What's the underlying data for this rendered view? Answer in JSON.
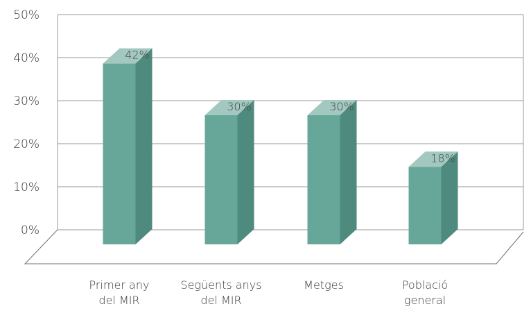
{
  "chart_data": {
    "type": "bar",
    "categories": [
      [
        "Primer any",
        "del MIR"
      ],
      [
        "Següents anys",
        "del MIR"
      ],
      [
        "Metges"
      ],
      [
        "Població",
        "general"
      ]
    ],
    "values": [
      42,
      30,
      30,
      18
    ],
    "data_labels": [
      "42%",
      "30%",
      "30%",
      "18%"
    ],
    "yticks": [
      "0%",
      "10%",
      "20%",
      "30%",
      "40%",
      "50%"
    ],
    "ylim": [
      0,
      50
    ],
    "grid": true,
    "three_d": true,
    "colors": {
      "bar_front": "#67a79a",
      "bar_side": "#4e8a7d",
      "bar_top": "#a2c8bf",
      "wall_front": "#d4dcda",
      "wall_side": "#e6ebea",
      "wall_top": "#eef2f1",
      "grid": "#9a9a9a",
      "axis": "#707070"
    }
  }
}
